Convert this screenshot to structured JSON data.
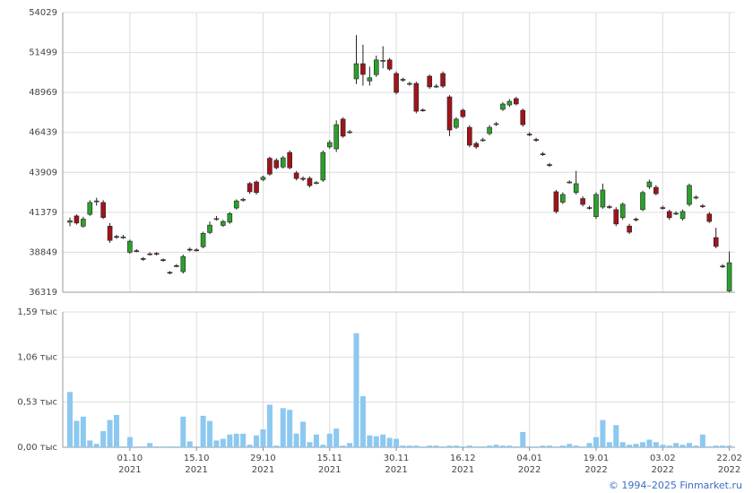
{
  "chart_data": {
    "type": "candlestick",
    "categories": [
      null,
      null,
      null,
      null,
      null,
      null,
      null,
      null,
      null,
      "01.10\n2021",
      null,
      null,
      null,
      null,
      null,
      null,
      null,
      null,
      null,
      "15.10\n2021",
      null,
      null,
      null,
      null,
      null,
      null,
      null,
      null,
      null,
      "29.10\n2021",
      null,
      null,
      null,
      null,
      null,
      null,
      null,
      null,
      null,
      "15.11\n2021",
      null,
      null,
      null,
      null,
      null,
      null,
      null,
      null,
      null,
      "30.11\n2021",
      null,
      null,
      null,
      null,
      null,
      null,
      null,
      null,
      null,
      "16.12\n2021",
      null,
      null,
      null,
      null,
      null,
      null,
      null,
      null,
      null,
      "04.01\n2022",
      null,
      null,
      null,
      null,
      null,
      null,
      null,
      null,
      null,
      "19.01\n2022",
      null,
      null,
      null,
      null,
      null,
      null,
      null,
      null,
      null,
      "03.02\n2022",
      null,
      null,
      null,
      null,
      null,
      null,
      null,
      null,
      null,
      "22.02\n2022"
    ],
    "open": [
      40750,
      41150,
      40500,
      41250,
      42050,
      42000,
      40500,
      39850,
      39800,
      38850,
      38950,
      38450,
      38750,
      38780,
      38380,
      37580,
      38000,
      37620,
      39040,
      39000,
      39200,
      40100,
      40950,
      40550,
      40750,
      41650,
      42150,
      43200,
      43300,
      43450,
      44800,
      44670,
      44250,
      45170,
      43870,
      43530,
      43530,
      43230,
      43420,
      45520,
      45400,
      47280,
      46450,
      49830,
      50790,
      49700,
      50100,
      50960,
      51030,
      50170,
      49800,
      49520,
      49540,
      47860,
      50000,
      49350,
      50170,
      48690,
      46760,
      47840,
      46760,
      45740,
      45950,
      46370,
      46970,
      47900,
      48180,
      48580,
      47840,
      46330,
      45990,
      45080,
      44400,
      42680,
      42020,
      43280,
      42630,
      42250,
      41680,
      41100,
      41710,
      41740,
      41550,
      41040,
      40510,
      40950,
      41550,
      42990,
      42960,
      41680,
      41430,
      41300,
      40980,
      41880,
      42320,
      41790,
      41270,
      39780,
      37980,
      36400
    ],
    "high": [
      41050,
      41250,
      41100,
      42150,
      42300,
      42150,
      40700,
      39950,
      39950,
      39650,
      39050,
      38550,
      38850,
      38850,
      38450,
      37650,
      38100,
      38700,
      39150,
      39100,
      40150,
      40800,
      41150,
      40900,
      41400,
      42200,
      42300,
      43300,
      43400,
      43700,
      44900,
      44800,
      44950,
      45300,
      44000,
      43650,
      43650,
      43350,
      45300,
      45950,
      47200,
      47400,
      46600,
      52600,
      52000,
      50600,
      51300,
      51900,
      51150,
      50300,
      49900,
      49650,
      49650,
      47950,
      50100,
      49500,
      50300,
      48800,
      47400,
      47950,
      46900,
      45850,
      46100,
      46900,
      47100,
      48350,
      48550,
      48700,
      47950,
      46450,
      46100,
      45200,
      44500,
      42800,
      42650,
      43400,
      44000,
      42400,
      41800,
      42650,
      43200,
      41850,
      41700,
      42000,
      40650,
      41050,
      42750,
      43450,
      43100,
      41800,
      41550,
      41450,
      41550,
      43200,
      42450,
      41900,
      41400,
      40400,
      38100,
      38900
    ],
    "low": [
      40500,
      40600,
      40400,
      41150,
      41800,
      40950,
      39450,
      39700,
      39700,
      38750,
      38850,
      38300,
      38650,
      38650,
      38250,
      37450,
      37900,
      37500,
      38900,
      38900,
      39100,
      40000,
      40850,
      40450,
      40650,
      41550,
      42050,
      42550,
      42500,
      43350,
      43700,
      44100,
      44150,
      44100,
      43400,
      43350,
      42950,
      43150,
      43300,
      45400,
      45200,
      46100,
      46350,
      49500,
      49400,
      49400,
      49950,
      50500,
      50350,
      48850,
      49650,
      49400,
      47650,
      47750,
      49200,
      49250,
      49250,
      46200,
      46650,
      47350,
      45500,
      45400,
      45850,
      46250,
      46850,
      47800,
      48050,
      48150,
      46800,
      46200,
      45850,
      44950,
      44250,
      41300,
      41900,
      43200,
      42500,
      41750,
      41550,
      40950,
      41600,
      41600,
      40500,
      40900,
      40000,
      40800,
      41450,
      42850,
      42450,
      41550,
      40900,
      41200,
      40850,
      41750,
      42200,
      41650,
      40700,
      39100,
      37850,
      36319
    ],
    "close": [
      40850,
      40700,
      40950,
      42000,
      42100,
      41050,
      39600,
      39800,
      39820,
      39550,
      38930,
      38420,
      38730,
      38750,
      38350,
      37560,
      37990,
      38580,
      39020,
      38980,
      40050,
      40570,
      40980,
      40800,
      41300,
      42100,
      42200,
      42680,
      42630,
      43600,
      43800,
      44200,
      44830,
      44200,
      43520,
      43470,
      43070,
      43260,
      45170,
      45800,
      46930,
      46200,
      46480,
      50790,
      50110,
      49900,
      51030,
      51000,
      50450,
      48970,
      49770,
      49540,
      47780,
      47840,
      49320,
      49370,
      49370,
      46590,
      47280,
      47440,
      45630,
      45520,
      45970,
      46760,
      46990,
      48240,
      48410,
      48240,
      46930,
      46310,
      45970,
      45060,
      44380,
      41430,
      42510,
      43300,
      43190,
      41880,
      41660,
      42510,
      42790,
      41720,
      40640,
      41890,
      40120,
      40930,
      42630,
      43300,
      42560,
      41660,
      41040,
      41320,
      41430,
      43080,
      42340,
      41770,
      40800,
      39220,
      37960,
      38190
    ],
    "volume": [
      0.65,
      0.31,
      0.36,
      0.08,
      0.04,
      0.19,
      0.32,
      0.38,
      0.01,
      0.12,
      0.01,
      0.01,
      0.05,
      0.01,
      0.01,
      0.01,
      0.01,
      0.36,
      0.07,
      0.01,
      0.37,
      0.31,
      0.08,
      0.1,
      0.15,
      0.16,
      0.16,
      0.03,
      0.14,
      0.21,
      0.5,
      0.02,
      0.46,
      0.44,
      0.16,
      0.3,
      0.06,
      0.15,
      0.03,
      0.16,
      0.22,
      0.02,
      0.05,
      1.34,
      0.6,
      0.14,
      0.13,
      0.15,
      0.11,
      0.1,
      0.02,
      0.02,
      0.02,
      0.01,
      0.02,
      0.02,
      0.01,
      0.02,
      0.02,
      0.01,
      0.02,
      0.01,
      0.01,
      0.02,
      0.03,
      0.02,
      0.02,
      0.01,
      0.18,
      0.01,
      0.01,
      0.02,
      0.02,
      0.01,
      0.02,
      0.04,
      0.02,
      0.01,
      0.05,
      0.12,
      0.32,
      0.06,
      0.26,
      0.06,
      0.03,
      0.04,
      0.06,
      0.09,
      0.06,
      0.03,
      0.02,
      0.05,
      0.03,
      0.05,
      0.02,
      0.15,
      0.01,
      0.02,
      0.02,
      0.02
    ],
    "ylim": [
      36319,
      54029
    ],
    "yticks": [
      36319,
      38849,
      41379,
      43909,
      46439,
      48969,
      51499,
      54029
    ],
    "volume_ylim": [
      0,
      1.59
    ],
    "volume_yticks": [
      {
        "value": 0,
        "label": "0,00 тыс"
      },
      {
        "value": 0.53,
        "label": "0,53 тыс"
      },
      {
        "value": 1.06,
        "label": "1,06 тыс"
      },
      {
        "value": 1.59,
        "label": "1,59 тыс"
      }
    ],
    "up_color": "#2ca02c",
    "down_color": "#a0141c",
    "volume_color": "#8cc8f0",
    "grid": true
  },
  "footer": "© 1994–2025 Finmarket.ru"
}
